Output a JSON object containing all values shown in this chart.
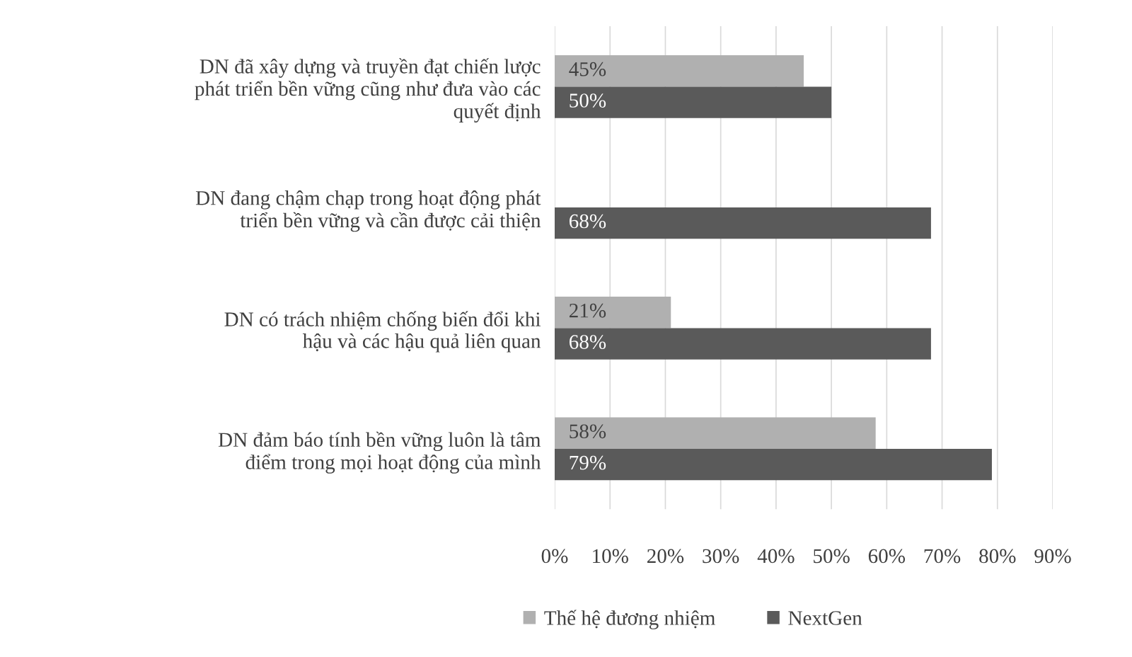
{
  "chart_data": {
    "type": "bar",
    "orientation": "horizontal",
    "categories": [
      "DN đã xây dựng và truyền đạt chiến lược\nphát triển bền vững cũng như đưa vào các\nquyết định",
      "DN đang chậm chạp trong hoạt động phát\ntriển bền vững và cần được cải thiện",
      "DN có trách nhiệm chống biến đổi khi\nhậu và các hậu quả liên quan",
      "DN đảm báo tính bền vững luôn là tâm\nđiểm trong mọi hoạt động của mình"
    ],
    "series": [
      {
        "name": "Thế hệ đương nhiệm",
        "color": "#b0b0b0",
        "values": [
          45,
          null,
          21,
          58
        ],
        "value_labels": [
          "45%",
          null,
          "21%",
          "58%"
        ]
      },
      {
        "name": "NextGen",
        "color": "#5a5a5a",
        "values": [
          50,
          68,
          68,
          79
        ],
        "value_labels": [
          "50%",
          "68%",
          "68%",
          "79%"
        ]
      }
    ],
    "xlim": [
      0,
      90
    ],
    "xticks": [
      {
        "value": 0,
        "label": "0%"
      },
      {
        "value": 10,
        "label": "10%"
      },
      {
        "value": 20,
        "label": "20%"
      },
      {
        "value": 30,
        "label": "30%"
      },
      {
        "value": 40,
        "label": "40%"
      },
      {
        "value": 50,
        "label": "50%"
      },
      {
        "value": 60,
        "label": "60%"
      },
      {
        "value": 70,
        "label": "70%"
      },
      {
        "value": 80,
        "label": "80%"
      },
      {
        "value": 90,
        "label": "90%"
      }
    ],
    "grid": "x",
    "legend": "bottom"
  }
}
